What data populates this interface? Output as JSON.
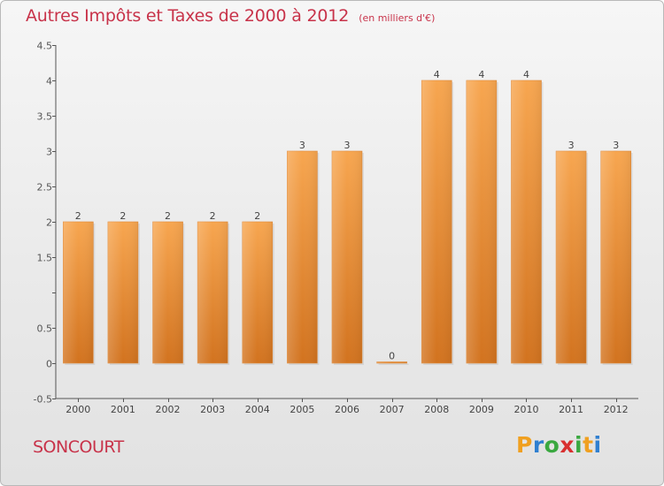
{
  "header": {
    "title": "Autres Impôts et Taxes de 2000 à 2012",
    "subtitle": "(en milliers d'€)"
  },
  "footer": {
    "commune": "SONCOURT"
  },
  "brand": {
    "letters": [
      "P",
      "r",
      "o",
      "x",
      "i",
      "t",
      "i"
    ],
    "colors": [
      "#f0a020",
      "#2f7fd0",
      "#3aa840",
      "#d83030",
      "#3aa840",
      "#f0a020",
      "#2f7fd0"
    ]
  },
  "chart_data": {
    "type": "bar",
    "categories": [
      "2000",
      "2001",
      "2002",
      "2003",
      "2004",
      "2005",
      "2006",
      "2007",
      "2008",
      "2009",
      "2010",
      "2011",
      "2012"
    ],
    "values": [
      2,
      2,
      2,
      2,
      2,
      3,
      3,
      0,
      4,
      4,
      4,
      3,
      3
    ],
    "value_labels": [
      "2",
      "2",
      "2",
      "2",
      "2",
      "3",
      "3",
      "0",
      "4",
      "4",
      "4",
      "3",
      "3"
    ],
    "title": "Autres Impôts et Taxes de 2000 à 2012",
    "xlabel": "",
    "ylabel": "",
    "ylim": [
      -0.5,
      4.5
    ],
    "yticks": [
      -0.5,
      0,
      0.5,
      1,
      1.5,
      2,
      2.5,
      3,
      3.5,
      4,
      4.5
    ],
    "ytick_labels": [
      "-0.5",
      "0",
      "0.5",
      "",
      "1.5",
      "2",
      "2.5",
      "3",
      "3.5",
      "4",
      "4.5"
    ],
    "grid": false,
    "bar_color": "#ef9a45"
  }
}
